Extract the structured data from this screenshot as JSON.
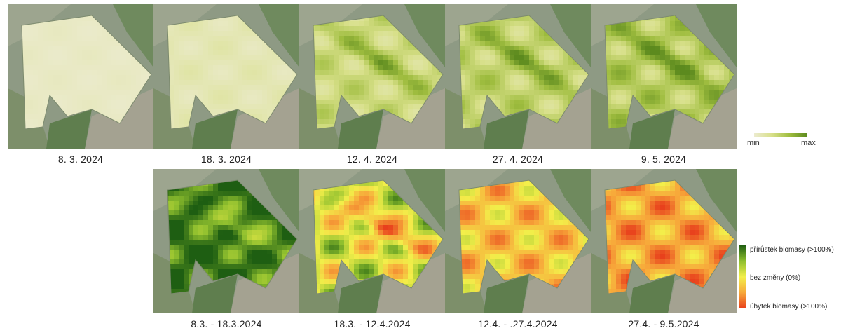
{
  "top_row": [
    {
      "date": "8. 3. 2024",
      "mode": "index",
      "level": 0.08
    },
    {
      "date": "18. 3. 2024",
      "mode": "index",
      "level": 0.2
    },
    {
      "date": "12. 4. 2024",
      "mode": "index",
      "level": 0.6
    },
    {
      "date": "27. 4. 2024",
      "mode": "index",
      "level": 0.7
    },
    {
      "date": "9. 5. 2024",
      "mode": "index",
      "level": 0.8
    }
  ],
  "bottom_row": [
    {
      "date": "8.3. - 18.3.2024",
      "mode": "change",
      "level": 0.95
    },
    {
      "date": "18.3. - 12.4.2024",
      "mode": "change",
      "level": 0.6
    },
    {
      "date": "12.4. - .27.4.2024",
      "mode": "change",
      "level": 0.35
    },
    {
      "date": "27.4. - 9.5.2024",
      "mode": "change",
      "level": 0.25
    }
  ],
  "legend_index": {
    "min": "min",
    "max": "max",
    "colors": [
      "#ecebd0",
      "#d8e08a",
      "#9fbd3f",
      "#5c8a1e"
    ]
  },
  "legend_change": {
    "increase": "přírůstek biomasy (>100%)",
    "no_change": "bez změny (0%)",
    "decrease": "úbytek biomasy (>100%)",
    "colors": [
      "#1e5e12",
      "#8fbf2e",
      "#f3ef4a",
      "#f7a83a",
      "#e8401c"
    ]
  }
}
